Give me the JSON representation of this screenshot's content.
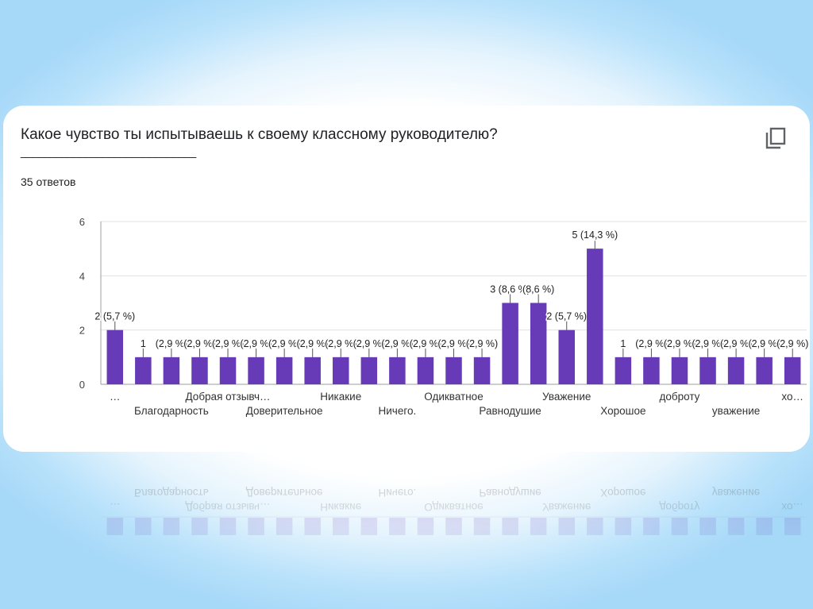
{
  "question": {
    "title": "Какое чувство ты испытываешь к своему классному руководителю?",
    "underline": "______________________________",
    "responses": "35 ответов"
  },
  "icons": {
    "copy": "copy-icon"
  },
  "colors": {
    "bar": "#673ab7",
    "grid": "#e0e0e0",
    "axis": "#9e9e9e",
    "text": "#202124"
  },
  "chart_data": {
    "type": "bar",
    "ylim": [
      0,
      6
    ],
    "yticks": [
      0,
      2,
      4,
      6
    ],
    "values": [
      2,
      1,
      1,
      1,
      1,
      1,
      1,
      1,
      1,
      1,
      1,
      1,
      1,
      1,
      3,
      3,
      2,
      5,
      1,
      1,
      1,
      1,
      1,
      1,
      1
    ],
    "data_labels": [
      "2 (5,7 %)",
      "1",
      "(2,9 %)",
      "(2,9 %)",
      "(2,9 %)",
      "(2,9 %)",
      "(2,9 %)",
      "(2,9 %)",
      "(2,9 %)",
      "(2,9 %)",
      "(2,9 %)",
      "(2,9 %)",
      "(2,9 %)",
      "(2,9 %)",
      "3 (8,6 %)",
      "(8,6 %)",
      "2 (5,7 %)",
      "5 (14,3 %)",
      "1",
      "(2,9 %)",
      "(2,9 %)",
      "(2,9 %)",
      "(2,9 %)",
      "(2,9 %)",
      "(2,9 %)"
    ],
    "category_labels": [
      "…",
      "Благодарность",
      "Добрая отзывч…",
      "Доверительное",
      "Никакие",
      "Ничего.",
      "Одикватное",
      "Равнодушие",
      "Уважение",
      "Хорошое",
      "доброту",
      "уважение",
      "хо…"
    ],
    "grid": true,
    "legend": "none"
  }
}
